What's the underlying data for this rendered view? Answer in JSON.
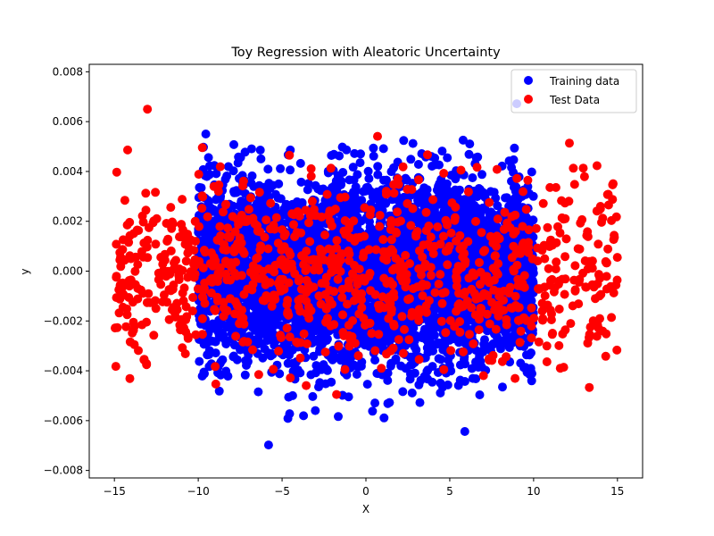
{
  "chart_data": {
    "type": "scatter",
    "title": "Toy Regression with Aleatoric Uncertainty",
    "xlabel": "X",
    "ylabel": "y",
    "xlim": [
      -16.5,
      16.5
    ],
    "ylim": [
      -0.0083,
      0.0083
    ],
    "xticks": [
      -15,
      -10,
      -5,
      0,
      5,
      10,
      15
    ],
    "xtick_labels": [
      "−15",
      "−10",
      "−5",
      "0",
      "5",
      "10",
      "15"
    ],
    "yticks": [
      -0.008,
      -0.006,
      -0.004,
      -0.002,
      0.0,
      0.002,
      0.004,
      0.006,
      0.008
    ],
    "ytick_labels": [
      "−0.008",
      "−0.006",
      "−0.004",
      "−0.002",
      "0.000",
      "0.002",
      "0.004",
      "0.006",
      "0.008"
    ],
    "grid": false,
    "legend_position": "top-right",
    "series": [
      {
        "name": "Training data",
        "color": "#0000ff",
        "x_range": [
          -10,
          10
        ],
        "y_std": 0.0018,
        "approx_point_count": 5000,
        "distribution": "x uniform in [-10, 10], y normal with mean 0 and std 0.0018 (estimated)"
      },
      {
        "name": "Test Data",
        "color": "#ff0000",
        "x_range": [
          -15,
          15
        ],
        "y_std": 0.0018,
        "approx_point_count": 1000,
        "distribution": "x uniform in [-15, 15], y normal with mean 0 and std 0.0018 (estimated)"
      }
    ]
  }
}
